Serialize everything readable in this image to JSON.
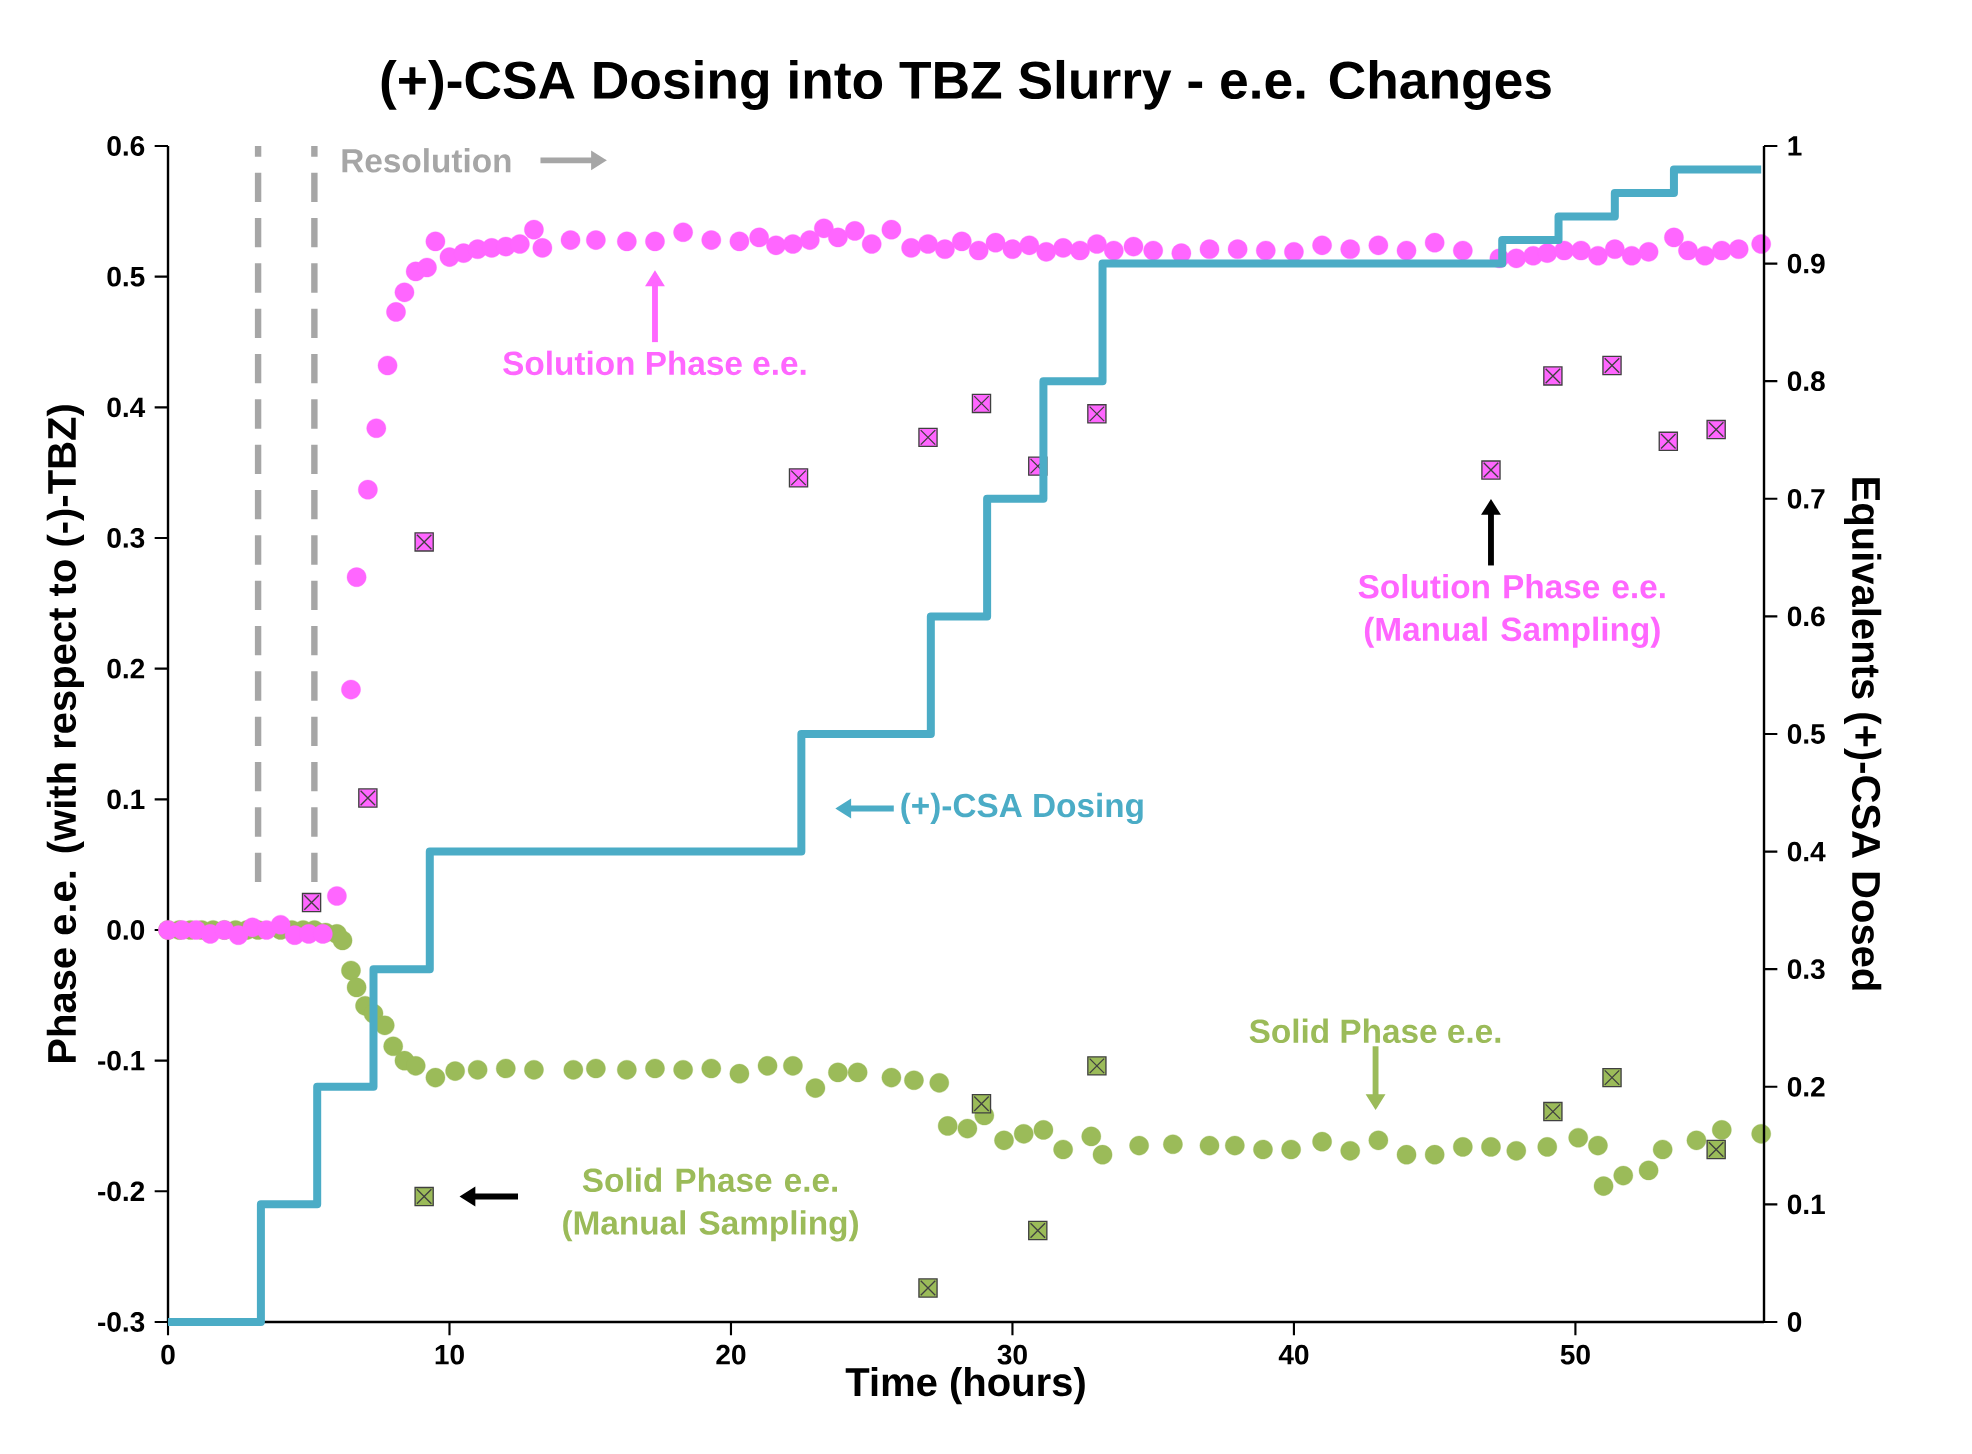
{
  "chart_data": {
    "type": "scatter",
    "title": "(+)-CSA Dosing into TBZ Slurry - e.e. Changes",
    "xlabel": "Time (hours)",
    "ylabel": "Phase e.e. (with respect to (-)-TBZ)",
    "y2label": "Equivalents (+)-CSA Dosed",
    "xlim": [
      0,
      56.7
    ],
    "xticks": [
      0,
      10,
      20,
      30,
      40,
      50
    ],
    "ylim": [
      -0.3,
      0.6
    ],
    "yticks": [
      -0.3,
      -0.2,
      -0.1,
      {
        "value": 0,
        "label": "0.0"
      },
      0.1,
      0.2,
      0.3,
      0.4,
      0.5,
      0.6
    ],
    "y2lim": [
      0,
      1
    ],
    "y2ticks": [
      0,
      0.1,
      0.2,
      0.3,
      0.4,
      0.5,
      0.6,
      0.7,
      0.8,
      0.9,
      1
    ],
    "grid": false,
    "series": [
      {
        "marker": "circle",
        "color": "#9bbb59",
        "x": [
          0,
          0.4,
          0.8,
          1.2,
          1.6,
          2.0,
          2.4,
          2.8,
          3.2,
          4.0,
          4.4,
          4.8,
          5.2,
          5.6,
          6.0,
          6.2,
          6.5,
          6.7,
          7.0,
          7.3,
          7.7,
          8.0,
          8.4,
          8.8,
          9.5,
          10.2,
          11,
          12,
          13,
          14.4,
          15.2,
          16.3,
          17.3,
          18.3,
          19.3,
          20.3,
          21.3,
          22.2,
          23.0,
          23.8,
          24.5,
          25.7,
          26.5,
          27.4,
          27.7,
          28.4,
          29.0,
          29.7,
          30.4,
          31.1,
          31.8,
          32.8,
          33.2,
          34.5,
          35.7,
          37.0,
          37.9,
          38.9,
          39.9,
          41.0,
          42.0,
          43.0,
          44.0,
          45.0,
          46.0,
          47.0,
          47.9,
          49.0,
          50.1,
          50.8,
          51.0,
          51.7,
          52.6,
          53.1,
          54.3,
          55.2,
          56.6
        ],
        "values": [
          0,
          0,
          0,
          0,
          0,
          0,
          0,
          0,
          0,
          0,
          0,
          0,
          0,
          -0.002,
          -0.003,
          -0.008,
          -0.031,
          -0.044,
          -0.058,
          -0.064,
          -0.073,
          -0.089,
          -0.1,
          -0.104,
          -0.113,
          -0.108,
          -0.107,
          -0.106,
          -0.107,
          -0.107,
          -0.106,
          -0.107,
          -0.106,
          -0.107,
          -0.106,
          -0.11,
          -0.104,
          -0.104,
          -0.121,
          -0.109,
          -0.109,
          -0.113,
          -0.115,
          -0.117,
          -0.15,
          -0.152,
          -0.142,
          -0.161,
          -0.156,
          -0.153,
          -0.168,
          -0.158,
          -0.172,
          -0.165,
          -0.164,
          -0.165,
          -0.165,
          -0.168,
          -0.168,
          -0.162,
          -0.169,
          -0.161,
          -0.172,
          -0.172,
          -0.166,
          -0.166,
          -0.169,
          -0.166,
          -0.159,
          -0.165,
          -0.196,
          -0.188,
          -0.184,
          -0.168,
          -0.161,
          -0.153,
          -0.156
        ]
      },
      {
        "marker": "circle",
        "color": "#ff66ff",
        "x": [
          0,
          0.5,
          1,
          1.5,
          2,
          2.5,
          3,
          3.5,
          4,
          4.5,
          5,
          5.5,
          6.0,
          6.5,
          6.7,
          7.1,
          7.4,
          7.8,
          8.1,
          8.4,
          8.8,
          9.2,
          9.5,
          10.0,
          10.5,
          11,
          11.5,
          12,
          12.5,
          13.0,
          13.3,
          14.3,
          15.2,
          16.3,
          17.3,
          18.3,
          19.3,
          20.3,
          21.0,
          21.6,
          22.2,
          22.8,
          23.3,
          23.8,
          24.4,
          25.0,
          25.7,
          26.4,
          27,
          27.6,
          28.2,
          28.8,
          29.4,
          30,
          30.6,
          31.2,
          31.8,
          32.4,
          33.0,
          33.6,
          34.3,
          35,
          36,
          37,
          38,
          39,
          40,
          41,
          42,
          43,
          44,
          45,
          46,
          47.3,
          47.9,
          48.5,
          49,
          49.6,
          50.2,
          50.8,
          51.4,
          52,
          52.6,
          53.5,
          54,
          54.6,
          55.2,
          55.8,
          56.6
        ],
        "values": [
          0,
          0,
          0,
          -0.003,
          0,
          -0.004,
          0.002,
          0,
          0.004,
          -0.004,
          -0.003,
          -0.003,
          0.026,
          0.184,
          0.27,
          0.337,
          0.384,
          0.432,
          0.473,
          0.488,
          0.504,
          0.507,
          0.527,
          0.515,
          0.518,
          0.521,
          0.522,
          0.523,
          0.525,
          0.536,
          0.522,
          0.528,
          0.528,
          0.527,
          0.527,
          0.534,
          0.528,
          0.527,
          0.53,
          0.524,
          0.525,
          0.528,
          0.537,
          0.53,
          0.535,
          0.525,
          0.536,
          0.522,
          0.525,
          0.521,
          0.527,
          0.52,
          0.526,
          0.521,
          0.524,
          0.519,
          0.522,
          0.52,
          0.525,
          0.52,
          0.523,
          0.52,
          0.518,
          0.521,
          0.521,
          0.52,
          0.519,
          0.524,
          0.521,
          0.524,
          0.52,
          0.526,
          0.52,
          0.514,
          0.514,
          0.516,
          0.518,
          0.52,
          0.52,
          0.516,
          0.521,
          0.516,
          0.519,
          0.53,
          0.52,
          0.516,
          0.52,
          0.521,
          0.525
        ]
      },
      {
        "marker": "square",
        "color": "#ff66ff",
        "x": [
          5.1,
          7.1,
          9.1,
          22.4,
          27.0,
          28.9,
          30.9,
          33.0,
          47.0,
          49.2,
          51.3,
          53.3,
          55.0
        ],
        "values": [
          0.021,
          0.101,
          0.297,
          0.346,
          0.377,
          0.403,
          0.355,
          0.395,
          0.352,
          0.424,
          0.432,
          0.374,
          0.383
        ]
      },
      {
        "marker": "square",
        "color": "#9bbb59",
        "x": [
          9.1,
          27.0,
          28.9,
          30.9,
          33.0,
          49.2,
          51.3,
          55.0
        ],
        "values": [
          -0.204,
          -0.274,
          -0.133,
          -0.23,
          -0.104,
          -0.139,
          -0.113,
          -0.168
        ]
      },
      {
        "type": "step",
        "axis": "y2",
        "color": "#4bacc6",
        "x": [
          0,
          3.3,
          5.3,
          7.3,
          9.3,
          22.5,
          27.1,
          29.1,
          31.1,
          33.2,
          47.4,
          49.4,
          51.4,
          53.5,
          56.6
        ],
        "values": [
          0,
          0.1,
          0.2,
          0.3,
          0.4,
          0.5,
          0.6,
          0.7,
          0.8,
          0.9,
          0.92,
          0.94,
          0.96,
          0.98,
          0.98
        ]
      }
    ],
    "ref_lines": [
      {
        "axis": "x",
        "value": 3.2,
        "color": "#a6a6a6",
        "line_style": "dashed"
      },
      {
        "axis": "x",
        "value": 5.2,
        "color": "#a6a6a6",
        "line_style": "dashed"
      }
    ],
    "annotations": [
      "Resolution",
      "Solution Phase e.e.",
      "(+)-CSA Dosing",
      "Solution Phase e.e. (Manual Sampling)",
      "Solid Phase e.e.",
      "Solid Phase e.e. (Manual Sampling)"
    ]
  }
}
